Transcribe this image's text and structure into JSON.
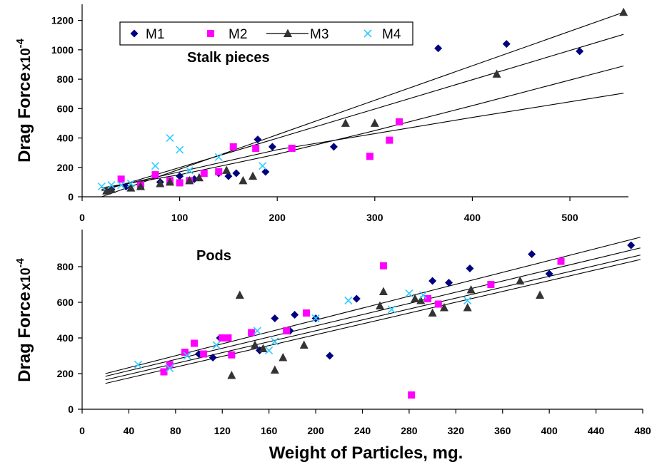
{
  "colors": {
    "M1": "#000080",
    "M2": "#ff00ff",
    "M3": "#333333",
    "M4": "#33ccff",
    "axis": "#000000",
    "fit_line": "#000000"
  },
  "chart_data": [
    {
      "type": "scatter",
      "panel": "top",
      "annotation": "Stalk pieces",
      "ylabel": "Drag Force",
      "ylabel_multiplier": "x",
      "ylabel_multiplier_base": "10",
      "ylabel_exponent": "-4",
      "xlabel": "",
      "xlim": [
        0,
        560
      ],
      "ylim": [
        0,
        1300
      ],
      "x_ticks": [
        0,
        100,
        200,
        300,
        400,
        500
      ],
      "y_ticks": [
        0,
        200,
        400,
        600,
        800,
        1000,
        1200
      ],
      "grid": false,
      "legend": {
        "placement": "top-left",
        "entries": [
          {
            "label": "M1",
            "marker": "diamond",
            "series": "M1"
          },
          {
            "label": "M2",
            "marker": "square",
            "series": "M2"
          },
          {
            "label": "M3",
            "marker": "triangle",
            "series": "M3",
            "line": true
          },
          {
            "label": "M4",
            "marker": "x",
            "series": "M4"
          }
        ]
      },
      "series": [
        {
          "name": "M1",
          "marker": "diamond",
          "points": [
            [
              30,
              50
            ],
            [
              45,
              70
            ],
            [
              60,
              80
            ],
            [
              80,
              100
            ],
            [
              100,
              140
            ],
            [
              115,
              120
            ],
            [
              140,
              160
            ],
            [
              150,
              140
            ],
            [
              158,
              160
            ],
            [
              180,
              390
            ],
            [
              188,
              170
            ],
            [
              195,
              340
            ],
            [
              258,
              340
            ],
            [
              365,
              1010
            ],
            [
              435,
              1040
            ],
            [
              510,
              990
            ]
          ]
        },
        {
          "name": "M2",
          "marker": "square",
          "points": [
            [
              40,
              120
            ],
            [
              60,
              80
            ],
            [
              75,
              150
            ],
            [
              90,
              110
            ],
            [
              100,
              95
            ],
            [
              110,
              110
            ],
            [
              125,
              160
            ],
            [
              140,
              170
            ],
            [
              155,
              340
            ],
            [
              178,
              330
            ],
            [
              215,
              330
            ],
            [
              295,
              275
            ],
            [
              315,
              385
            ],
            [
              325,
              510
            ]
          ]
        },
        {
          "name": "M3",
          "marker": "triangle",
          "points": [
            [
              25,
              40
            ],
            [
              30,
              50
            ],
            [
              50,
              60
            ],
            [
              60,
              70
            ],
            [
              80,
              90
            ],
            [
              90,
              100
            ],
            [
              110,
              110
            ],
            [
              120,
              130
            ],
            [
              148,
              180
            ],
            [
              165,
              110
            ],
            [
              175,
              140
            ],
            [
              270,
              500
            ],
            [
              300,
              500
            ],
            [
              425,
              835
            ],
            [
              555,
              1255
            ]
          ]
        },
        {
          "name": "M4",
          "marker": "x",
          "points": [
            [
              20,
              70
            ],
            [
              30,
              80
            ],
            [
              40,
              80
            ],
            [
              50,
              90
            ],
            [
              75,
              210
            ],
            [
              90,
              400
            ],
            [
              100,
              320
            ],
            [
              110,
              180
            ],
            [
              140,
              270
            ],
            [
              185,
              210
            ]
          ]
        }
      ],
      "fit_lines": [
        {
          "kind": "linear",
          "from": [
            20,
            0
          ],
          "to": [
            555,
            1255
          ]
        },
        {
          "kind": "linear",
          "from": [
            20,
            40
          ],
          "to": [
            555,
            1105
          ]
        },
        {
          "kind": "curve",
          "points": [
            [
              20,
              60
            ],
            [
              100,
              150
            ],
            [
              200,
              290
            ],
            [
              300,
              450
            ],
            [
              400,
              620
            ],
            [
              555,
              890
            ]
          ]
        },
        {
          "kind": "curve",
          "points": [
            [
              20,
              50
            ],
            [
              100,
              170
            ],
            [
              200,
              320
            ],
            [
              300,
              430
            ],
            [
              400,
              540
            ],
            [
              555,
              705
            ]
          ]
        }
      ]
    },
    {
      "type": "scatter",
      "panel": "bottom",
      "annotation": "Pods",
      "ylabel": "Drag Force",
      "ylabel_multiplier": "x",
      "ylabel_multiplier_base": "10",
      "ylabel_exponent": "-4",
      "xlabel": "Weight of Particles, mg.",
      "xlim": [
        0,
        480
      ],
      "ylim": [
        0,
        1000
      ],
      "x_ticks": [
        0,
        40,
        80,
        120,
        160,
        200,
        240,
        280,
        320,
        360,
        400,
        440,
        480
      ],
      "y_ticks": [
        0,
        200,
        400,
        600,
        800
      ],
      "grid": false,
      "series": [
        {
          "name": "M1",
          "marker": "diamond",
          "points": [
            [
              100,
              310
            ],
            [
              112,
              290
            ],
            [
              118,
              400
            ],
            [
              152,
              330
            ],
            [
              165,
              510
            ],
            [
              178,
              440
            ],
            [
              182,
              530
            ],
            [
              200,
              510
            ],
            [
              212,
              300
            ],
            [
              235,
              620
            ],
            [
              300,
              720
            ],
            [
              314,
              710
            ],
            [
              332,
              790
            ],
            [
              385,
              870
            ],
            [
              400,
              760
            ],
            [
              470,
              920
            ]
          ]
        },
        {
          "name": "M2",
          "marker": "square",
          "points": [
            [
              70,
              210
            ],
            [
              75,
              250
            ],
            [
              88,
              320
            ],
            [
              96,
              370
            ],
            [
              104,
              310
            ],
            [
              120,
              400
            ],
            [
              125,
              400
            ],
            [
              128,
              305
            ],
            [
              145,
              430
            ],
            [
              175,
              440
            ],
            [
              192,
              540
            ],
            [
              258,
              805
            ],
            [
              282,
              80
            ],
            [
              296,
              620
            ],
            [
              305,
              590
            ],
            [
              350,
              700
            ],
            [
              410,
              830
            ]
          ]
        },
        {
          "name": "M3",
          "marker": "triangle",
          "points": [
            [
              128,
              190
            ],
            [
              135,
              640
            ],
            [
              148,
              360
            ],
            [
              155,
              340
            ],
            [
              165,
              220
            ],
            [
              172,
              290
            ],
            [
              190,
              360
            ],
            [
              255,
              580
            ],
            [
              258,
              660
            ],
            [
              285,
              620
            ],
            [
              290,
              610
            ],
            [
              300,
              540
            ],
            [
              310,
              570
            ],
            [
              330,
              570
            ],
            [
              333,
              670
            ],
            [
              375,
              720
            ],
            [
              392,
              640
            ]
          ]
        },
        {
          "name": "M4",
          "marker": "x",
          "points": [
            [
              48,
              250
            ],
            [
              75,
              230
            ],
            [
              90,
              300
            ],
            [
              115,
              360
            ],
            [
              150,
              440
            ],
            [
              160,
              330
            ],
            [
              165,
              380
            ],
            [
              200,
              510
            ],
            [
              228,
              610
            ],
            [
              265,
              560
            ],
            [
              280,
              650
            ],
            [
              292,
              640
            ],
            [
              330,
              610
            ]
          ]
        }
      ],
      "fit_lines": [
        {
          "kind": "linear",
          "from": [
            20,
            200
          ],
          "to": [
            478,
            965
          ]
        },
        {
          "kind": "linear",
          "from": [
            20,
            185
          ],
          "to": [
            478,
            905
          ]
        },
        {
          "kind": "linear",
          "from": [
            20,
            165
          ],
          "to": [
            478,
            865
          ]
        },
        {
          "kind": "linear",
          "from": [
            20,
            145
          ],
          "to": [
            478,
            840
          ]
        }
      ]
    }
  ]
}
